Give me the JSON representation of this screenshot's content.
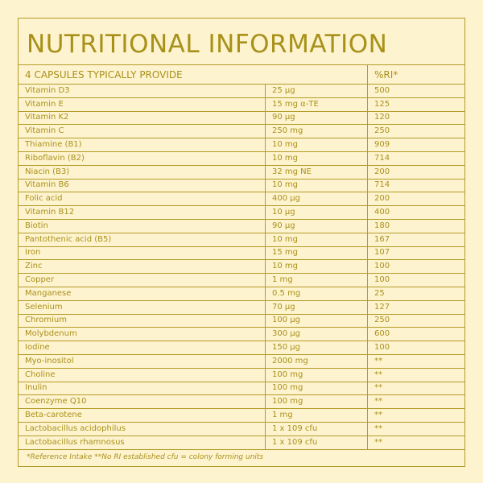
{
  "header": {
    "title": "NUTRITIONAL INFORMATION"
  },
  "table": {
    "header": [
      "4 CAPSULES TYPICALLY PROVIDE",
      "%RI*"
    ],
    "rows": [
      [
        "Vitamin D3",
        "25 µg",
        "500"
      ],
      [
        "Vitamin E",
        "15 mg α-TE",
        "125"
      ],
      [
        "Vitamin K2",
        "90 µg",
        "120"
      ],
      [
        "Vitamin C",
        "250 mg",
        "250"
      ],
      [
        "Thiamine (B1)",
        "10 mg",
        "909"
      ],
      [
        "Riboflavin (B2)",
        "10 mg",
        "714"
      ],
      [
        "Niacin (B3)",
        "32 mg NE",
        "200"
      ],
      [
        "Vitamin B6",
        "10 mg",
        "714"
      ],
      [
        "Folic acid",
        "400 µg",
        "200"
      ],
      [
        "Vitamin B12",
        "10 µg",
        "400"
      ],
      [
        "Biotin",
        "90 µg",
        "180"
      ],
      [
        "Pantothenic acid (B5)",
        "10 mg",
        "167"
      ],
      [
        "Iron",
        "15 mg",
        "107"
      ],
      [
        "Zinc",
        "10 mg",
        "100"
      ],
      [
        "Copper",
        "1 mg",
        "100"
      ],
      [
        "Manganese",
        "0.5 mg",
        "25"
      ],
      [
        "Selenium",
        "70 µg",
        "127"
      ],
      [
        "Chromium",
        "100 µg",
        "250"
      ],
      [
        "Molybdenum",
        "300 µg",
        "600"
      ],
      [
        "Iodine",
        "150 µg",
        "100"
      ],
      [
        "Myo-inositol",
        "2000 mg",
        "**"
      ],
      [
        "Choline",
        "100 mg",
        "**"
      ],
      [
        "Inulin",
        "100 mg",
        "**"
      ],
      [
        "Coenzyme Q10",
        "100 mg",
        "**"
      ],
      [
        "Beta-carotene",
        "1 mg",
        "**"
      ],
      [
        "Lactobacillus acidophilus",
        "1 x 109 cfu",
        "**"
      ],
      [
        "Lactobacillus rhamnosus",
        "1 x 109 cfu",
        "**"
      ]
    ]
  },
  "footer": "*Reference Intake  **No RI established cfu = colony forming units"
}
